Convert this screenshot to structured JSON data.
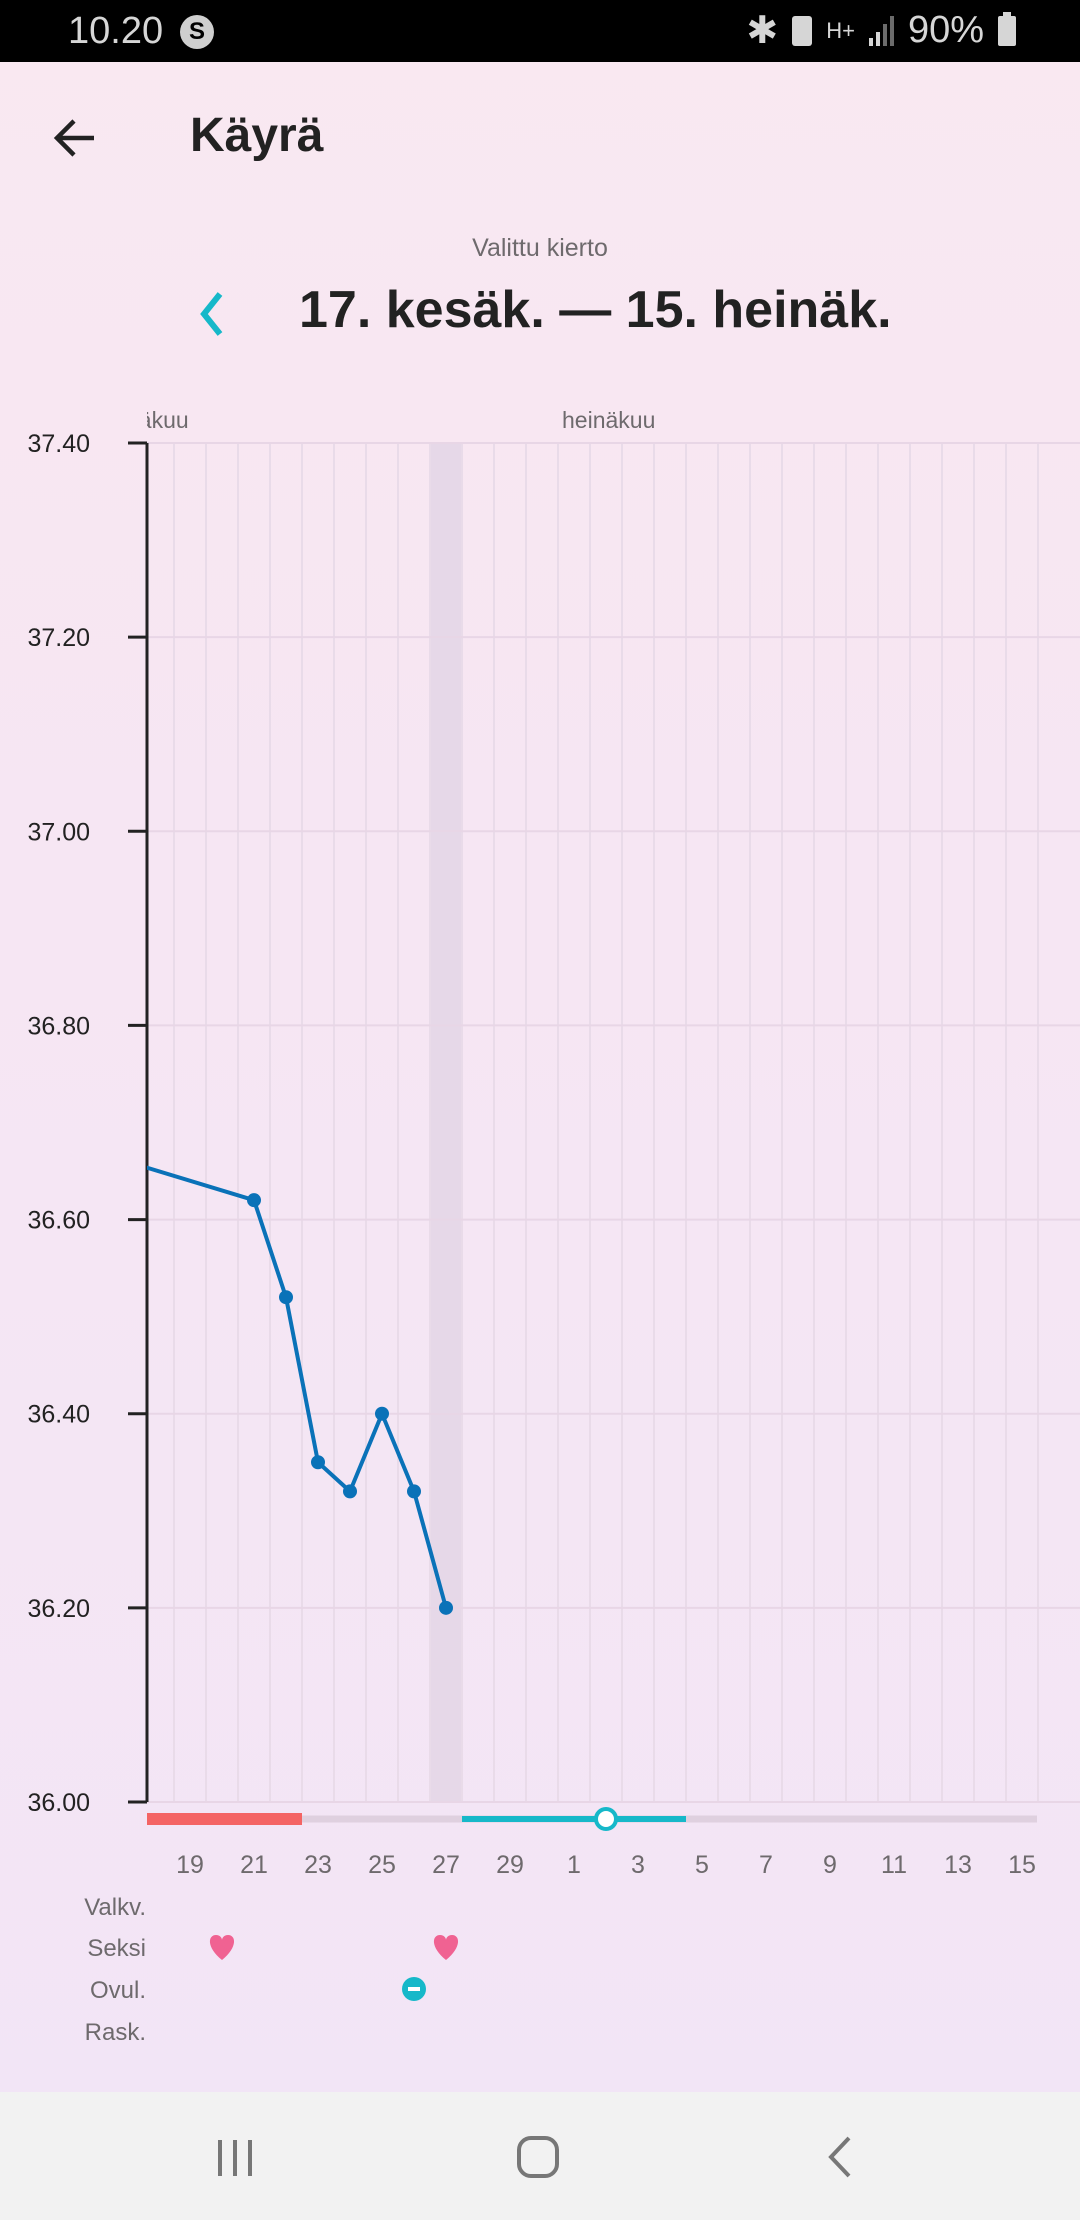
{
  "status_bar": {
    "time": "10.20",
    "battery": "90%",
    "network": "H+"
  },
  "header": {
    "title": "Käyrä",
    "back_icon": "arrow-left-icon"
  },
  "cycle": {
    "label": "Valittu kierto",
    "range": "17. kesäk. — 15. heinäk.",
    "prev_icon": "chevron-left-icon",
    "accent": "#16b8c9"
  },
  "chart_data": {
    "type": "line",
    "title": "",
    "xlabel": "",
    "ylabel": "",
    "ylim": [
      36.0,
      37.4
    ],
    "yticks": [
      "37.40",
      "37.20",
      "37.00",
      "36.80",
      "36.60",
      "36.40",
      "36.20",
      "36.00"
    ],
    "xrange": [
      "2019-06-18",
      "2019-07-15"
    ],
    "month_labels": [
      {
        "label": "kesäkuu",
        "start": "06-17"
      },
      {
        "label": "heinäkuu",
        "start": "07-01"
      }
    ],
    "xticks": [
      "19",
      "21",
      "23",
      "25",
      "27",
      "29",
      "1",
      "3",
      "5",
      "7",
      "9",
      "11",
      "13",
      "15"
    ],
    "grid": true,
    "highlighted_day": "06-27",
    "series": [
      {
        "color": "#0a72b8",
        "x": [
          "06-17",
          "06-21",
          "06-22",
          "06-23",
          "06-24",
          "06-25",
          "06-26",
          "06-27"
        ],
        "values": [
          36.66,
          36.62,
          36.52,
          36.35,
          36.32,
          36.4,
          36.32,
          36.2
        ]
      }
    ],
    "cycle_bar": {
      "period": {
        "from": "06-17",
        "to": "06-22",
        "color": "#f46464"
      },
      "fertile": {
        "from": "06-28",
        "to": "07-04",
        "color": "#16b8c9"
      },
      "ovulation_estimate": "07-02"
    },
    "rows": [
      {
        "label": "Valkv.",
        "markers": []
      },
      {
        "label": "Seksi",
        "markers": [
          {
            "day": "06-20",
            "icon": "heart-icon",
            "color": "#f06292"
          },
          {
            "day": "06-27",
            "icon": "heart-icon",
            "color": "#f06292"
          }
        ]
      },
      {
        "label": "Ovul.",
        "markers": [
          {
            "day": "06-26",
            "icon": "ovulation-icon",
            "color": "#16b8c9"
          }
        ]
      },
      {
        "label": "Rask.",
        "markers": []
      }
    ]
  }
}
